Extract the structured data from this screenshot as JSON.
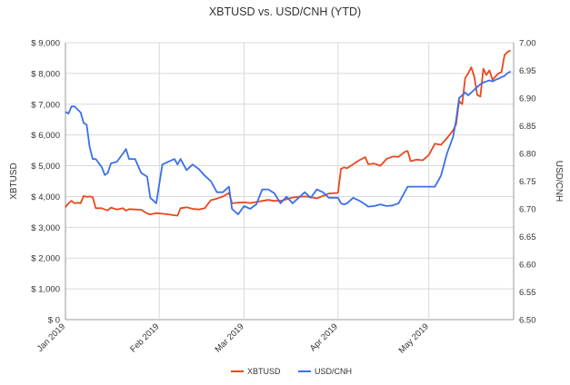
{
  "chart_data": {
    "type": "line",
    "title": "XBTUSD vs. USD/CNH (YTD)",
    "ylabel_left": "XBTUSD",
    "ylabel_right": "USD/CNH",
    "x_range": [
      "2019-01-01",
      "2019-05-29"
    ],
    "x_tick_labels": [
      {
        "date": "2019-01-01",
        "label": "Jan 2019"
      },
      {
        "date": "2019-02-01",
        "label": "Feb 2019"
      },
      {
        "date": "2019-03-01",
        "label": "Mar 2019"
      },
      {
        "date": "2019-04-01",
        "label": "Apr 2019"
      },
      {
        "date": "2019-05-01",
        "label": "May 2019"
      }
    ],
    "y_left": {
      "min": 0,
      "max": 9000,
      "ticks": [
        0,
        1000,
        2000,
        3000,
        4000,
        5000,
        6000,
        7000,
        8000,
        9000
      ],
      "tick_labels": [
        "$ 0",
        "$ 1,000",
        "$ 2,000",
        "$ 3,000",
        "$ 4,000",
        "$ 5,000",
        "$ 6,000",
        "$ 7,000",
        "$ 8,000",
        "$ 9,000"
      ]
    },
    "y_right": {
      "min": 6.5,
      "max": 7.0,
      "ticks": [
        6.5,
        6.55,
        6.6,
        6.65,
        6.7,
        6.75,
        6.8,
        6.85,
        6.9,
        6.95,
        7.0
      ],
      "tick_labels": [
        "6.50",
        "6.55",
        "6.60",
        "6.65",
        "6.70",
        "6.75",
        "6.80",
        "6.85",
        "6.90",
        "6.95",
        "7.00"
      ]
    },
    "legend_position": "bottom",
    "series": [
      {
        "name": "XBTUSD",
        "axis": "left",
        "color": "#e8481c",
        "points": [
          [
            "2019-01-01",
            3650
          ],
          [
            "2019-01-02",
            3780
          ],
          [
            "2019-01-03",
            3860
          ],
          [
            "2019-01-04",
            3780
          ],
          [
            "2019-01-05",
            3800
          ],
          [
            "2019-01-06",
            3780
          ],
          [
            "2019-01-07",
            4020
          ],
          [
            "2019-01-08",
            3990
          ],
          [
            "2019-01-09",
            4000
          ],
          [
            "2019-01-10",
            3980
          ],
          [
            "2019-01-11",
            3620
          ],
          [
            "2019-01-13",
            3620
          ],
          [
            "2019-01-14",
            3580
          ],
          [
            "2019-01-15",
            3550
          ],
          [
            "2019-01-16",
            3640
          ],
          [
            "2019-01-18",
            3580
          ],
          [
            "2019-01-20",
            3620
          ],
          [
            "2019-01-21",
            3540
          ],
          [
            "2019-01-22",
            3590
          ],
          [
            "2019-01-24",
            3580
          ],
          [
            "2019-01-26",
            3570
          ],
          [
            "2019-01-28",
            3450
          ],
          [
            "2019-01-29",
            3420
          ],
          [
            "2019-01-31",
            3460
          ],
          [
            "2019-02-02",
            3440
          ],
          [
            "2019-02-04",
            3420
          ],
          [
            "2019-02-06",
            3390
          ],
          [
            "2019-02-07",
            3380
          ],
          [
            "2019-02-08",
            3620
          ],
          [
            "2019-02-10",
            3650
          ],
          [
            "2019-02-12",
            3600
          ],
          [
            "2019-02-14",
            3580
          ],
          [
            "2019-02-16",
            3620
          ],
          [
            "2019-02-18",
            3880
          ],
          [
            "2019-02-20",
            3930
          ],
          [
            "2019-02-22",
            4000
          ],
          [
            "2019-02-24",
            4120
          ],
          [
            "2019-02-25",
            3780
          ],
          [
            "2019-02-27",
            3800
          ],
          [
            "2019-03-01",
            3810
          ],
          [
            "2019-03-03",
            3790
          ],
          [
            "2019-03-05",
            3820
          ],
          [
            "2019-03-07",
            3860
          ],
          [
            "2019-03-09",
            3890
          ],
          [
            "2019-03-11",
            3860
          ],
          [
            "2019-03-13",
            3860
          ],
          [
            "2019-03-15",
            3910
          ],
          [
            "2019-03-17",
            3970
          ],
          [
            "2019-03-19",
            3990
          ],
          [
            "2019-03-21",
            4000
          ],
          [
            "2019-03-23",
            3980
          ],
          [
            "2019-03-25",
            3940
          ],
          [
            "2019-03-27",
            4020
          ],
          [
            "2019-03-29",
            4100
          ],
          [
            "2019-04-01",
            4120
          ],
          [
            "2019-04-02",
            4900
          ],
          [
            "2019-04-03",
            4950
          ],
          [
            "2019-04-04",
            4920
          ],
          [
            "2019-04-06",
            5050
          ],
          [
            "2019-04-08",
            5180
          ],
          [
            "2019-04-10",
            5280
          ],
          [
            "2019-04-11",
            5050
          ],
          [
            "2019-04-13",
            5070
          ],
          [
            "2019-04-15",
            5000
          ],
          [
            "2019-04-17",
            5220
          ],
          [
            "2019-04-19",
            5300
          ],
          [
            "2019-04-21",
            5290
          ],
          [
            "2019-04-23",
            5450
          ],
          [
            "2019-04-24",
            5480
          ],
          [
            "2019-04-25",
            5150
          ],
          [
            "2019-04-27",
            5200
          ],
          [
            "2019-04-29",
            5180
          ],
          [
            "2019-05-01",
            5350
          ],
          [
            "2019-05-03",
            5720
          ],
          [
            "2019-05-05",
            5680
          ],
          [
            "2019-05-07",
            5900
          ],
          [
            "2019-05-09",
            6150
          ],
          [
            "2019-05-10",
            6350
          ],
          [
            "2019-05-11",
            7100
          ],
          [
            "2019-05-12",
            7000
          ],
          [
            "2019-05-13",
            7850
          ],
          [
            "2019-05-14",
            8000
          ],
          [
            "2019-05-15",
            8200
          ],
          [
            "2019-05-16",
            7900
          ],
          [
            "2019-05-17",
            7300
          ],
          [
            "2019-05-18",
            7250
          ],
          [
            "2019-05-19",
            8150
          ],
          [
            "2019-05-20",
            7950
          ],
          [
            "2019-05-21",
            8100
          ],
          [
            "2019-05-22",
            7800
          ],
          [
            "2019-05-23",
            7900
          ],
          [
            "2019-05-24",
            8000
          ],
          [
            "2019-05-25",
            8050
          ],
          [
            "2019-05-26",
            8600
          ],
          [
            "2019-05-27",
            8700
          ],
          [
            "2019-05-28",
            8750
          ]
        ]
      },
      {
        "name": "USD/CNH",
        "axis": "right",
        "color": "#3a6fe8",
        "points": [
          [
            "2019-01-01",
            6.875
          ],
          [
            "2019-01-02",
            6.872
          ],
          [
            "2019-01-03",
            6.885
          ],
          [
            "2019-01-04",
            6.885
          ],
          [
            "2019-01-06",
            6.874
          ],
          [
            "2019-01-07",
            6.855
          ],
          [
            "2019-01-08",
            6.852
          ],
          [
            "2019-01-09",
            6.812
          ],
          [
            "2019-01-10",
            6.79
          ],
          [
            "2019-01-11",
            6.79
          ],
          [
            "2019-01-13",
            6.775
          ],
          [
            "2019-01-14",
            6.761
          ],
          [
            "2019-01-15",
            6.765
          ],
          [
            "2019-01-16",
            6.782
          ],
          [
            "2019-01-18",
            6.785
          ],
          [
            "2019-01-20",
            6.8
          ],
          [
            "2019-01-21",
            6.808
          ],
          [
            "2019-01-22",
            6.79
          ],
          [
            "2019-01-24",
            6.79
          ],
          [
            "2019-01-26",
            6.765
          ],
          [
            "2019-01-28",
            6.758
          ],
          [
            "2019-01-29",
            6.72
          ],
          [
            "2019-01-31",
            6.71
          ],
          [
            "2019-02-02",
            6.78
          ],
          [
            "2019-02-04",
            6.785
          ],
          [
            "2019-02-06",
            6.79
          ],
          [
            "2019-02-07",
            6.78
          ],
          [
            "2019-02-08",
            6.79
          ],
          [
            "2019-02-10",
            6.77
          ],
          [
            "2019-02-12",
            6.78
          ],
          [
            "2019-02-14",
            6.772
          ],
          [
            "2019-02-16",
            6.76
          ],
          [
            "2019-02-18",
            6.75
          ],
          [
            "2019-02-20",
            6.73
          ],
          [
            "2019-02-22",
            6.73
          ],
          [
            "2019-02-24",
            6.74
          ],
          [
            "2019-02-25",
            6.7
          ],
          [
            "2019-02-27",
            6.69
          ],
          [
            "2019-03-01",
            6.705
          ],
          [
            "2019-03-03",
            6.7
          ],
          [
            "2019-03-05",
            6.708
          ],
          [
            "2019-03-07",
            6.735
          ],
          [
            "2019-03-09",
            6.735
          ],
          [
            "2019-03-11",
            6.728
          ],
          [
            "2019-03-13",
            6.71
          ],
          [
            "2019-03-15",
            6.722
          ],
          [
            "2019-03-17",
            6.71
          ],
          [
            "2019-03-19",
            6.72
          ],
          [
            "2019-03-21",
            6.73
          ],
          [
            "2019-03-23",
            6.72
          ],
          [
            "2019-03-25",
            6.735
          ],
          [
            "2019-03-27",
            6.73
          ],
          [
            "2019-03-29",
            6.72
          ],
          [
            "2019-04-01",
            6.72
          ],
          [
            "2019-04-02",
            6.71
          ],
          [
            "2019-04-03",
            6.708
          ],
          [
            "2019-04-04",
            6.71
          ],
          [
            "2019-04-06",
            6.72
          ],
          [
            "2019-04-08",
            6.715
          ],
          [
            "2019-04-10",
            6.708
          ],
          [
            "2019-04-11",
            6.704
          ],
          [
            "2019-04-13",
            6.705
          ],
          [
            "2019-04-15",
            6.708
          ],
          [
            "2019-04-17",
            6.705
          ],
          [
            "2019-04-19",
            6.706
          ],
          [
            "2019-04-21",
            6.71
          ],
          [
            "2019-04-23",
            6.73
          ],
          [
            "2019-04-24",
            6.74
          ],
          [
            "2019-04-25",
            6.74
          ],
          [
            "2019-04-27",
            6.74
          ],
          [
            "2019-04-29",
            6.74
          ],
          [
            "2019-05-01",
            6.74
          ],
          [
            "2019-05-03",
            6.74
          ],
          [
            "2019-05-05",
            6.76
          ],
          [
            "2019-05-07",
            6.8
          ],
          [
            "2019-05-09",
            6.83
          ],
          [
            "2019-05-10",
            6.86
          ],
          [
            "2019-05-11",
            6.9
          ],
          [
            "2019-05-12",
            6.905
          ],
          [
            "2019-05-13",
            6.91
          ],
          [
            "2019-05-14",
            6.905
          ],
          [
            "2019-05-15",
            6.91
          ],
          [
            "2019-05-16",
            6.915
          ],
          [
            "2019-05-17",
            6.92
          ],
          [
            "2019-05-18",
            6.925
          ],
          [
            "2019-05-19",
            6.928
          ],
          [
            "2019-05-20",
            6.93
          ],
          [
            "2019-05-21",
            6.932
          ],
          [
            "2019-05-22",
            6.93
          ],
          [
            "2019-05-23",
            6.933
          ],
          [
            "2019-05-24",
            6.935
          ],
          [
            "2019-05-25",
            6.938
          ],
          [
            "2019-05-26",
            6.94
          ],
          [
            "2019-05-27",
            6.945
          ],
          [
            "2019-05-28",
            6.948
          ]
        ]
      }
    ]
  }
}
